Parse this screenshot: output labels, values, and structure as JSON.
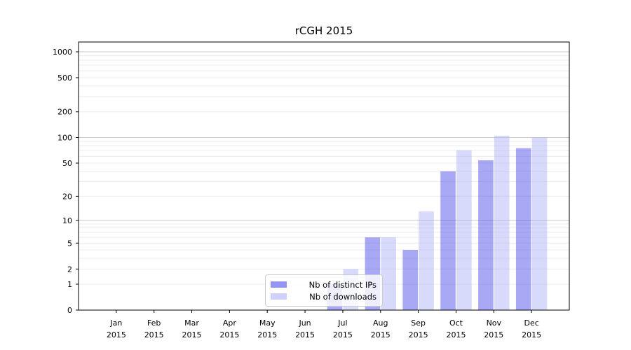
{
  "chart_data": {
    "type": "bar",
    "title": "rCGH 2015",
    "categories": [
      "Jan",
      "Feb",
      "Mar",
      "Apr",
      "May",
      "Jun",
      "Jul",
      "Aug",
      "Sep",
      "Oct",
      "Nov",
      "Dec"
    ],
    "x_year": "2015",
    "series": [
      {
        "name": "Nb of distinct IPs",
        "color": "#3d3de8",
        "values": [
          0,
          0,
          0,
          0,
          0,
          0,
          1,
          6,
          4,
          40,
          54,
          75
        ]
      },
      {
        "name": "Nb of downloads",
        "color": "#a8acf6",
        "values": [
          0,
          0,
          0,
          0,
          0,
          0,
          2,
          6,
          13,
          71,
          105,
          100
        ]
      }
    ],
    "bar_alpha": 0.45,
    "yscale": "log1p",
    "y_ticks": [
      0,
      1,
      2,
      5,
      10,
      20,
      50,
      100,
      200,
      500,
      1000
    ],
    "ylim": [
      0,
      1300
    ],
    "grid": "on",
    "legend_position": "lower center-left inside plot",
    "axis_color": "#000000",
    "major_grid_color": "#c8c8c8",
    "minor_grid_color": "#ececec"
  }
}
